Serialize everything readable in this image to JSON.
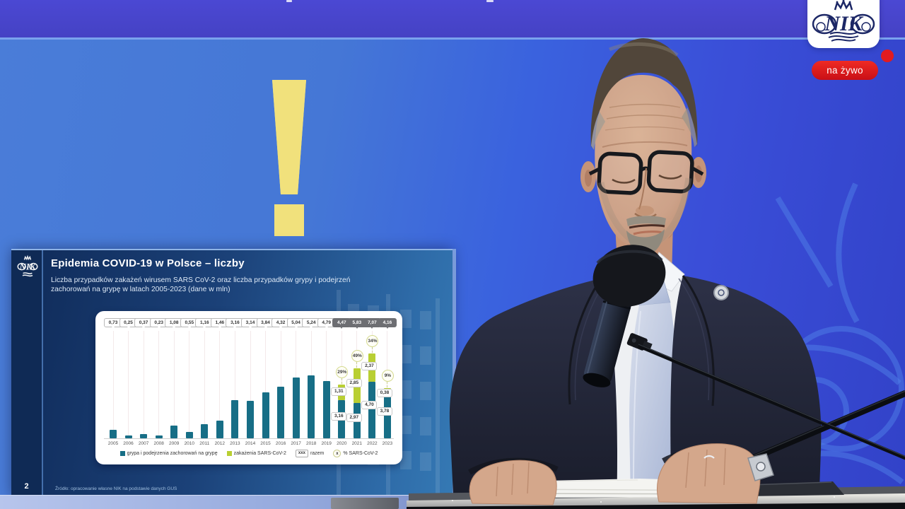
{
  "stream": {
    "logo_text": "NIK",
    "live_badge": "na żywo"
  },
  "slide": {
    "title": "Epidemia COVID-19 w Polsce – liczby",
    "subtitle_line1": "Liczba przypadków zakażeń wirusem SARS CoV-2 oraz liczba przypadków grypy i podejrzeń",
    "subtitle_line2": "zachorowań na grypę w latach 2005-2023 (dane w mln)",
    "page_number": "2",
    "source": "Źródło: opracowanie własne NIK na podstawie danych GUS"
  },
  "chart_data": {
    "type": "bar",
    "stacked": true,
    "unit": "mln",
    "title": "Liczba przypadków zakażeń wirusem SARS CoV-2 oraz liczba przypadków grypy i podejrzeń zachorowań na grypę w latach 2005-2023 (dane w mln)",
    "categories": [
      "2005",
      "2006",
      "2007",
      "2008",
      "2009",
      "2010",
      "2011",
      "2012",
      "2013",
      "2014",
      "2015",
      "2016",
      "2017",
      "2018",
      "2019",
      "2020",
      "2021",
      "2022",
      "2023"
    ],
    "series": [
      {
        "name": "grypa i podejrzenia zachorowań na grypę",
        "color": "#176E86",
        "values": [
          0.73,
          0.25,
          0.37,
          0.23,
          1.08,
          0.55,
          1.16,
          1.46,
          3.16,
          3.14,
          3.84,
          4.32,
          5.04,
          5.24,
          4.79,
          3.16,
          2.97,
          4.7,
          3.78
        ]
      },
      {
        "name": "zakażenia SARS-CoV-2",
        "color": "#B9CF33",
        "values": [
          0,
          0,
          0,
          0,
          0,
          0,
          0,
          0,
          0,
          0,
          0,
          0,
          0,
          0,
          0,
          1.31,
          2.85,
          2.37,
          0.38
        ]
      }
    ],
    "total_labels": [
      "0,73",
      "0,25",
      "0,37",
      "0,23",
      "1,08",
      "0,55",
      "1,16",
      "1,46",
      "3,16",
      "3,14",
      "3,84",
      "4,32",
      "5,04",
      "5,24",
      "4,79",
      "4,47",
      "5,83",
      "7,07",
      "4,16"
    ],
    "totals_highlight_from": 15,
    "sars_share_labels": [
      "29%",
      "49%",
      "34%",
      "9%"
    ],
    "flu_value_labels": [
      "3,16",
      "2,97",
      "4,70",
      "3,78"
    ],
    "sars_value_labels": [
      "1,31",
      "2,85",
      "2,37",
      "0,38"
    ],
    "ylim": [
      0,
      7.5
    ],
    "grid": "vertical-per-category",
    "legend_position": "bottom",
    "legend": [
      {
        "type": "swatch",
        "color": "#176E86",
        "label": "grypa i podejrzenia zachorowań na grypę"
      },
      {
        "type": "swatch",
        "color": "#B9CF33",
        "label": "zakażenia SARS-CoV-2"
      },
      {
        "type": "chip",
        "symbol": "xxx",
        "label": "razem"
      },
      {
        "type": "circle",
        "symbol": "x",
        "label": "% SARS-CoV-2"
      }
    ]
  }
}
